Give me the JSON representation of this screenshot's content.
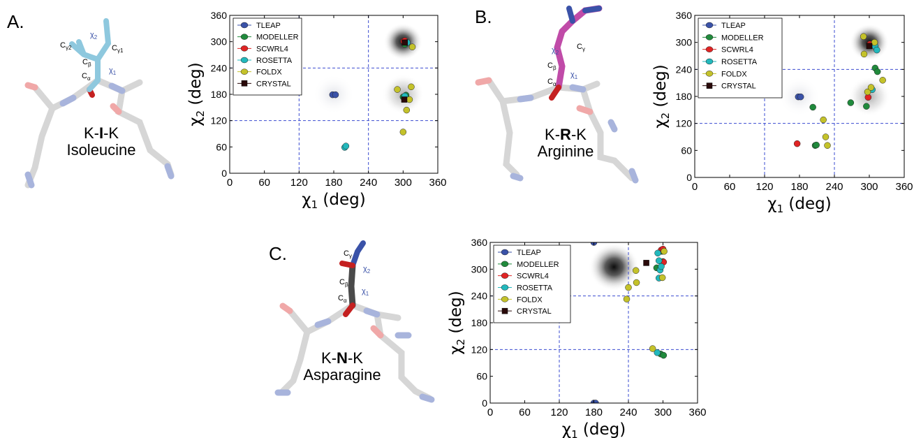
{
  "panels": [
    {
      "label": "A.",
      "molecule": {
        "name_prefix": "K-",
        "name_bold": "I",
        "name_suffix": "-K",
        "full_name": "Isoleucine",
        "stick_color": "#8ec8de",
        "atom_labels": [
          {
            "base": "C",
            "sub": "γ2"
          },
          {
            "base": "χ",
            "sub": "2"
          },
          {
            "base": "C",
            "sub": "γ1"
          },
          {
            "base": "C",
            "sub": "β"
          },
          {
            "base": "C",
            "sub": "α"
          },
          {
            "base": "χ",
            "sub": "1"
          }
        ]
      },
      "chart_data": {
        "type": "scatter",
        "xlabel": {
          "base": "χ",
          "sub": "1",
          "tail": " (deg)"
        },
        "ylabel": {
          "base": "χ",
          "sub": "2",
          "tail": " (deg)"
        },
        "xlim": [
          0,
          360
        ],
        "ylim": [
          0,
          360
        ],
        "xticks": [
          "0",
          "60",
          "120",
          "180",
          "240",
          "300",
          "360"
        ],
        "yticks": [
          "0",
          "60",
          "120",
          "180",
          "240",
          "300",
          "360"
        ],
        "reference_lines": [
          120,
          240
        ],
        "density_centers": [
          [
            300,
            300
          ],
          [
            300,
            180
          ],
          [
            180,
            180
          ]
        ],
        "legend_position": "top-left",
        "series": [
          {
            "name": "TLEAP",
            "color": "#3a52a8",
            "points": [
              [
                178,
                179
              ],
              [
                183,
                179
              ]
            ]
          },
          {
            "name": "MODELLER",
            "color": "#208a3c",
            "points": [
              [
                303,
                294
              ],
              [
                305,
                178
              ],
              [
                300,
                174
              ]
            ]
          },
          {
            "name": "SCWRL4",
            "color": "#e02424",
            "points": [
              [
                301,
                301
              ],
              [
                303,
                302
              ]
            ]
          },
          {
            "name": "ROSETTA",
            "color": "#22b8bc",
            "points": [
              [
                199,
                59
              ],
              [
                201,
                62
              ],
              [
                307,
                298
              ],
              [
                303,
                176
              ]
            ]
          },
          {
            "name": "FOLDX",
            "color": "#c4c22a",
            "points": [
              [
                290,
                191
              ],
              [
                314,
                197
              ],
              [
                311,
                168
              ],
              [
                306,
                144
              ],
              [
                300,
                94
              ],
              [
                316,
                288
              ]
            ]
          },
          {
            "name": "CRYSTAL",
            "color": "#2a0a0a",
            "marker": "square",
            "points": [
              [
                302,
                168
              ],
              [
                303,
                298
              ]
            ]
          }
        ]
      }
    },
    {
      "label": "B.",
      "molecule": {
        "name_prefix": "K-",
        "name_bold": "R",
        "name_suffix": "-K",
        "full_name": "Arginine",
        "stick_color": "#c04ba8",
        "atom_labels": [
          {
            "base": "χ",
            "sub": "2"
          },
          {
            "base": "C",
            "sub": "γ"
          },
          {
            "base": "C",
            "sub": "β"
          },
          {
            "base": "χ",
            "sub": "1"
          },
          {
            "base": "C",
            "sub": "α"
          }
        ]
      },
      "chart_data": {
        "type": "scatter",
        "xlabel": {
          "base": "χ",
          "sub": "1",
          "tail": " (deg)"
        },
        "ylabel": {
          "base": "χ",
          "sub": "2",
          "tail": " (deg)"
        },
        "xlim": [
          0,
          360
        ],
        "ylim": [
          0,
          360
        ],
        "xticks": [
          "0",
          "60",
          "120",
          "180",
          "240",
          "300",
          "360"
        ],
        "yticks": [
          "0",
          "60",
          "120",
          "180",
          "240",
          "300",
          "360"
        ],
        "reference_lines": [
          120,
          240
        ],
        "density_centers": [
          [
            300,
            300
          ],
          [
            300,
            180
          ],
          [
            180,
            180
          ]
        ],
        "legend_position": "top-left",
        "series": [
          {
            "name": "TLEAP",
            "color": "#3a52a8",
            "points": [
              [
                178,
                179
              ],
              [
                182,
                179
              ]
            ]
          },
          {
            "name": "MODELLER",
            "color": "#208a3c",
            "points": [
              [
                203,
                156
              ],
              [
                207,
                71
              ],
              [
                209,
                72
              ],
              [
                268,
                166
              ],
              [
                295,
                158
              ],
              [
                310,
                243
              ],
              [
                314,
                235
              ]
            ]
          },
          {
            "name": "SCWRL4",
            "color": "#e02424",
            "points": [
              [
                176,
                75
              ],
              [
                298,
                178
              ],
              [
                301,
                296
              ]
            ]
          },
          {
            "name": "ROSETTA",
            "color": "#22b8bc",
            "points": [
              [
                305,
                195
              ],
              [
                310,
                291
              ],
              [
                313,
                283
              ]
            ]
          },
          {
            "name": "FOLDX",
            "color": "#c4c22a",
            "points": [
              [
                221,
                128
              ],
              [
                225,
                90
              ],
              [
                228,
                71
              ],
              [
                291,
                274
              ],
              [
                290,
                313
              ],
              [
                297,
                190
              ],
              [
                303,
                200
              ],
              [
                309,
                300
              ],
              [
                323,
                216
              ]
            ]
          },
          {
            "name": "CRYSTAL",
            "color": "#2a0a0a",
            "marker": "square",
            "points": [
              [
                300,
                292
              ]
            ]
          }
        ]
      }
    },
    {
      "label": "C.",
      "molecule": {
        "name_prefix": "K-",
        "name_bold": "N",
        "name_suffix": "-K",
        "full_name": "Asparagine",
        "stick_color": "#4a4a4a",
        "atom_labels": [
          {
            "base": "C",
            "sub": "γ"
          },
          {
            "base": "χ",
            "sub": "2"
          },
          {
            "base": "C",
            "sub": "β"
          },
          {
            "base": "χ",
            "sub": "1"
          },
          {
            "base": "C",
            "sub": "α"
          }
        ]
      },
      "chart_data": {
        "type": "scatter",
        "xlabel": {
          "base": "χ",
          "sub": "1",
          "tail": " (deg)"
        },
        "ylabel": {
          "base": "χ",
          "sub": "2",
          "tail": " (deg)"
        },
        "xlim": [
          0,
          360
        ],
        "ylim": [
          0,
          360
        ],
        "xticks": [
          "0",
          "60",
          "120",
          "180",
          "240",
          "300",
          "360"
        ],
        "yticks": [
          "0",
          "60",
          "120",
          "180",
          "240",
          "300",
          "360"
        ],
        "reference_lines": [
          120,
          240
        ],
        "density_centers": [
          [
            215,
            305
          ]
        ],
        "legend_position": "top-left",
        "series": [
          {
            "name": "TLEAP",
            "color": "#3a52a8",
            "points": [
              [
                180,
                360
              ],
              [
                180,
                0
              ],
              [
                183,
                0
              ]
            ]
          },
          {
            "name": "MODELLER",
            "color": "#208a3c",
            "points": [
              [
                289,
                303
              ],
              [
                298,
                340
              ],
              [
                300,
                317
              ],
              [
                296,
                110
              ],
              [
                301,
                107
              ]
            ]
          },
          {
            "name": "SCWRL4",
            "color": "#e02424",
            "points": [
              [
                297,
                343
              ],
              [
                301,
                316
              ],
              [
                300,
                345
              ]
            ]
          },
          {
            "name": "ROSETTA",
            "color": "#22b8bc",
            "points": [
              [
                291,
                336
              ],
              [
                293,
                319
              ],
              [
                295,
                298
              ],
              [
                297,
                306
              ],
              [
                293,
                280
              ],
              [
                290,
                113
              ]
            ]
          },
          {
            "name": "FOLDX",
            "color": "#c4c22a",
            "points": [
              [
                253,
                297
              ],
              [
                254,
                270
              ],
              [
                240,
                259
              ],
              [
                237,
                233
              ],
              [
                282,
                122
              ],
              [
                299,
                281
              ],
              [
                302,
                340
              ]
            ]
          },
          {
            "name": "CRYSTAL",
            "color": "#2a0a0a",
            "marker": "square",
            "points": [
              [
                271,
                314
              ]
            ]
          }
        ]
      }
    }
  ]
}
